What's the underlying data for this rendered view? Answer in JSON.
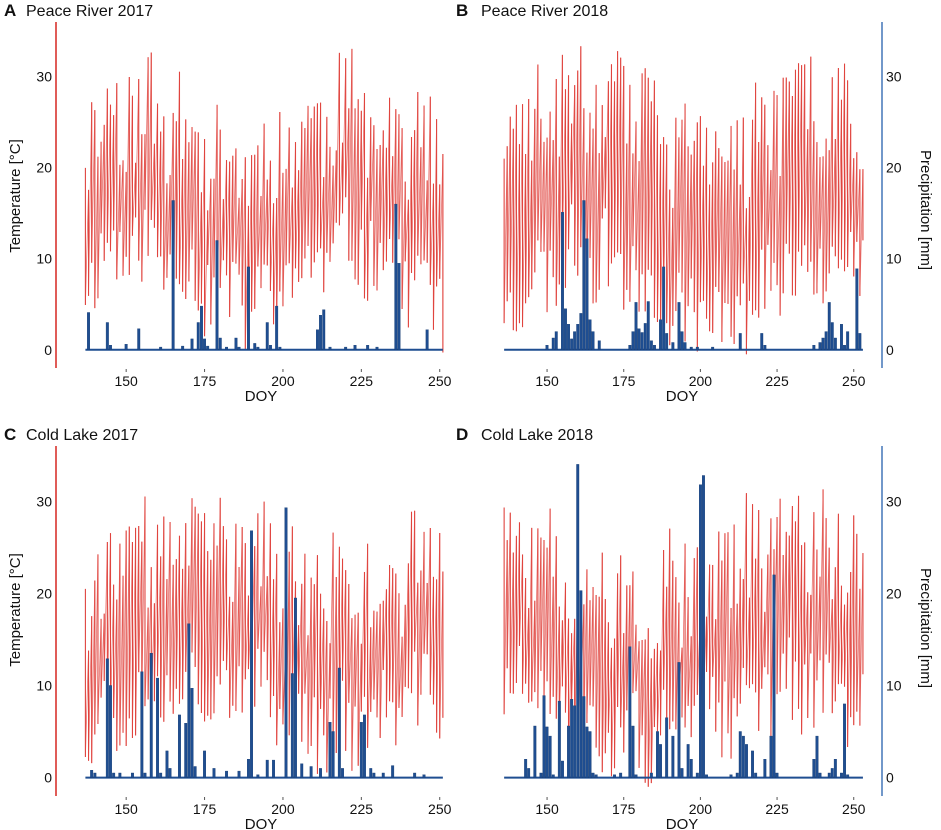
{
  "figure": {
    "temp_axis_label": "Temperature [°C]",
    "precip_axis_label": "Precipitation [mm]",
    "x_axis_label": "DOY",
    "temp_color": "#e0443f",
    "precip_color": "#1f4e91",
    "left_axis_color": "#d9332e",
    "right_axis_color": "#4f7fbd"
  },
  "chart_data": [
    {
      "type": "bar",
      "panel": "A",
      "title": "Peace River 2017",
      "xlabel": "DOY",
      "ylabel": "Temperature [°C]",
      "xlim": [
        134,
        252
      ],
      "ylim": [
        -2,
        36
      ],
      "xticks": [
        150,
        175,
        200,
        225,
        250
      ],
      "yticks": [
        0,
        10,
        20,
        30
      ],
      "xstart": 137,
      "xend": 251,
      "tmin_base": 8,
      "tmax_base": 21,
      "trend_amp": 3,
      "trend_freq": 0.09,
      "trend_phase": 0.4,
      "seed": 11,
      "precip_series": "Precipitation [mm]",
      "precip": [
        [
          138,
          4.1
        ],
        [
          144,
          3.0
        ],
        [
          145,
          0.5
        ],
        [
          150,
          0.6
        ],
        [
          154,
          2.3
        ],
        [
          161,
          0.3
        ],
        [
          165,
          16.4
        ],
        [
          168,
          0.4
        ],
        [
          171,
          1.2
        ],
        [
          173,
          3.0
        ],
        [
          174,
          4.8
        ],
        [
          175,
          1.2
        ],
        [
          176,
          0.4
        ],
        [
          179,
          12.0
        ],
        [
          180,
          1.3
        ],
        [
          182,
          0.3
        ],
        [
          185,
          1.3
        ],
        [
          186,
          0.3
        ],
        [
          189,
          9.1
        ],
        [
          191,
          0.7
        ],
        [
          192,
          0.3
        ],
        [
          195,
          3.0
        ],
        [
          196,
          0.5
        ],
        [
          198,
          4.8
        ],
        [
          199,
          0.3
        ],
        [
          211,
          2.2
        ],
        [
          212,
          3.8
        ],
        [
          213,
          4.4
        ],
        [
          215,
          0.3
        ],
        [
          220,
          0.3
        ],
        [
          223,
          0.5
        ],
        [
          227,
          0.5
        ],
        [
          230,
          0.3
        ],
        [
          236,
          16.0
        ],
        [
          237,
          9.5
        ],
        [
          246,
          2.2
        ]
      ]
    },
    {
      "type": "bar",
      "panel": "B",
      "title": "Peace River 2018",
      "xlabel": "DOY",
      "ylabel": "Precipitation [mm]",
      "xlim": [
        134,
        254
      ],
      "ylim": [
        -2,
        36
      ],
      "xticks": [
        150,
        175,
        200,
        225,
        250
      ],
      "yticks": [
        0,
        10,
        20,
        30
      ],
      "xstart": 136,
      "xend": 253,
      "tmin_base": 7,
      "tmax_base": 22,
      "trend_amp": 3.5,
      "trend_freq": 0.08,
      "trend_phase": 1.1,
      "seed": 23,
      "precip_series": "Precipitation [mm]",
      "precip": [
        [
          150,
          0.5
        ],
        [
          152,
          1.3
        ],
        [
          153,
          2.0
        ],
        [
          155,
          15.1
        ],
        [
          156,
          4.5
        ],
        [
          157,
          2.8
        ],
        [
          158,
          1.2
        ],
        [
          159,
          2.0
        ],
        [
          160,
          2.8
        ],
        [
          161,
          4.0
        ],
        [
          162,
          16.4
        ],
        [
          163,
          12.2
        ],
        [
          164,
          3.3
        ],
        [
          165,
          2.0
        ],
        [
          167,
          1.0
        ],
        [
          177,
          0.5
        ],
        [
          178,
          2.0
        ],
        [
          179,
          5.2
        ],
        [
          180,
          2.3
        ],
        [
          181,
          1.9
        ],
        [
          182,
          2.9
        ],
        [
          183,
          5.3
        ],
        [
          184,
          1.0
        ],
        [
          185,
          0.5
        ],
        [
          187,
          3.3
        ],
        [
          188,
          9.1
        ],
        [
          189,
          1.8
        ],
        [
          191,
          0.8
        ],
        [
          193,
          5.2
        ],
        [
          194,
          2.0
        ],
        [
          195,
          0.8
        ],
        [
          197,
          0.3
        ],
        [
          199,
          0.3
        ],
        [
          204,
          0.3
        ],
        [
          213,
          1.8
        ],
        [
          220,
          1.8
        ],
        [
          221,
          0.5
        ],
        [
          237,
          0.5
        ],
        [
          239,
          0.8
        ],
        [
          240,
          1.3
        ],
        [
          241,
          2.0
        ],
        [
          242,
          5.2
        ],
        [
          243,
          3.0
        ],
        [
          244,
          1.3
        ],
        [
          246,
          2.8
        ],
        [
          247,
          0.5
        ],
        [
          248,
          2.0
        ],
        [
          251,
          8.9
        ],
        [
          252,
          1.8
        ]
      ]
    },
    {
      "type": "bar",
      "panel": "C",
      "title": "Cold Lake 2017",
      "xlabel": "DOY",
      "ylabel": "Temperature [°C]",
      "xlim": [
        134,
        252
      ],
      "ylim": [
        -2,
        36
      ],
      "xticks": [
        150,
        175,
        200,
        225,
        250
      ],
      "yticks": [
        0,
        10,
        20,
        30
      ],
      "xstart": 137,
      "xend": 251,
      "tmin_base": 8,
      "tmax_base": 20,
      "trend_amp": 2.5,
      "trend_freq": 0.07,
      "trend_phase": 2.0,
      "seed": 37,
      "precip_series": "Precipitation [mm]",
      "precip": [
        [
          139,
          0.8
        ],
        [
          140,
          0.5
        ],
        [
          144,
          12.9
        ],
        [
          145,
          10.0
        ],
        [
          146,
          0.5
        ],
        [
          148,
          0.5
        ],
        [
          152,
          0.5
        ],
        [
          155,
          11.5
        ],
        [
          156,
          0.5
        ],
        [
          158,
          13.5
        ],
        [
          160,
          10.8
        ],
        [
          161,
          0.5
        ],
        [
          163,
          2.9
        ],
        [
          164,
          1.0
        ],
        [
          167,
          6.8
        ],
        [
          169,
          5.9
        ],
        [
          170,
          16.7
        ],
        [
          171,
          9.7
        ],
        [
          172,
          1.2
        ],
        [
          175,
          2.9
        ],
        [
          178,
          1.0
        ],
        [
          182,
          0.7
        ],
        [
          186,
          0.7
        ],
        [
          189,
          2.0
        ],
        [
          190,
          26.8
        ],
        [
          192,
          0.3
        ],
        [
          195,
          1.9
        ],
        [
          197,
          1.9
        ],
        [
          201,
          29.3
        ],
        [
          203,
          11.3
        ],
        [
          204,
          19.5
        ],
        [
          206,
          1.5
        ],
        [
          209,
          1.2
        ],
        [
          212,
          1.0
        ],
        [
          215,
          6.0
        ],
        [
          216,
          5.0
        ],
        [
          218,
          11.9
        ],
        [
          219,
          1.0
        ],
        [
          225,
          6.0
        ],
        [
          226,
          6.8
        ],
        [
          228,
          1.0
        ],
        [
          229,
          0.5
        ],
        [
          232,
          0.5
        ],
        [
          235,
          1.3
        ],
        [
          242,
          0.5
        ],
        [
          245,
          0.3
        ]
      ]
    },
    {
      "type": "bar",
      "panel": "D",
      "title": "Cold Lake 2018",
      "xlabel": "DOY",
      "ylabel": "Precipitation [mm]",
      "xlim": [
        134,
        254
      ],
      "ylim": [
        -2,
        36
      ],
      "xticks": [
        150,
        175,
        200,
        225,
        250
      ],
      "yticks": [
        0,
        10,
        20,
        30
      ],
      "xstart": 136,
      "xend": 253,
      "tmin_base": 7,
      "tmax_base": 20,
      "trend_amp": 3,
      "trend_freq": 0.06,
      "trend_phase": 0.2,
      "seed": 51,
      "precip_series": "Precipitation [mm]",
      "precip": [
        [
          143,
          2.0
        ],
        [
          144,
          1.0
        ],
        [
          146,
          5.6
        ],
        [
          148,
          0.5
        ],
        [
          149,
          8.9
        ],
        [
          150,
          5.5
        ],
        [
          151,
          4.5
        ],
        [
          152,
          0.3
        ],
        [
          154,
          8.3
        ],
        [
          155,
          1.8
        ],
        [
          157,
          5.6
        ],
        [
          158,
          8.5
        ],
        [
          159,
          7.8
        ],
        [
          160,
          34.0
        ],
        [
          161,
          20.3
        ],
        [
          162,
          8.8
        ],
        [
          163,
          5.5
        ],
        [
          164,
          5.0
        ],
        [
          165,
          0.5
        ],
        [
          166,
          0.3
        ],
        [
          172,
          0.3
        ],
        [
          174,
          0.5
        ],
        [
          177,
          14.2
        ],
        [
          178,
          5.6
        ],
        [
          179,
          0.3
        ],
        [
          184,
          0.5
        ],
        [
          186,
          5.0
        ],
        [
          187,
          3.6
        ],
        [
          189,
          6.5
        ],
        [
          191,
          4.5
        ],
        [
          193,
          12.5
        ],
        [
          194,
          1.0
        ],
        [
          196,
          3.6
        ],
        [
          197,
          2.0
        ],
        [
          199,
          0.5
        ],
        [
          200,
          31.8
        ],
        [
          201,
          32.8
        ],
        [
          202,
          0.3
        ],
        [
          210,
          0.3
        ],
        [
          212,
          0.5
        ],
        [
          213,
          5.0
        ],
        [
          214,
          4.5
        ],
        [
          215,
          3.6
        ],
        [
          217,
          2.9
        ],
        [
          218,
          0.5
        ],
        [
          221,
          2.0
        ],
        [
          223,
          4.5
        ],
        [
          224,
          22.0
        ],
        [
          225,
          0.5
        ],
        [
          237,
          2.0
        ],
        [
          238,
          4.5
        ],
        [
          239,
          0.5
        ],
        [
          242,
          0.5
        ],
        [
          243,
          1.0
        ],
        [
          244,
          2.0
        ],
        [
          246,
          0.5
        ],
        [
          247,
          8.0
        ],
        [
          248,
          0.3
        ]
      ]
    }
  ]
}
